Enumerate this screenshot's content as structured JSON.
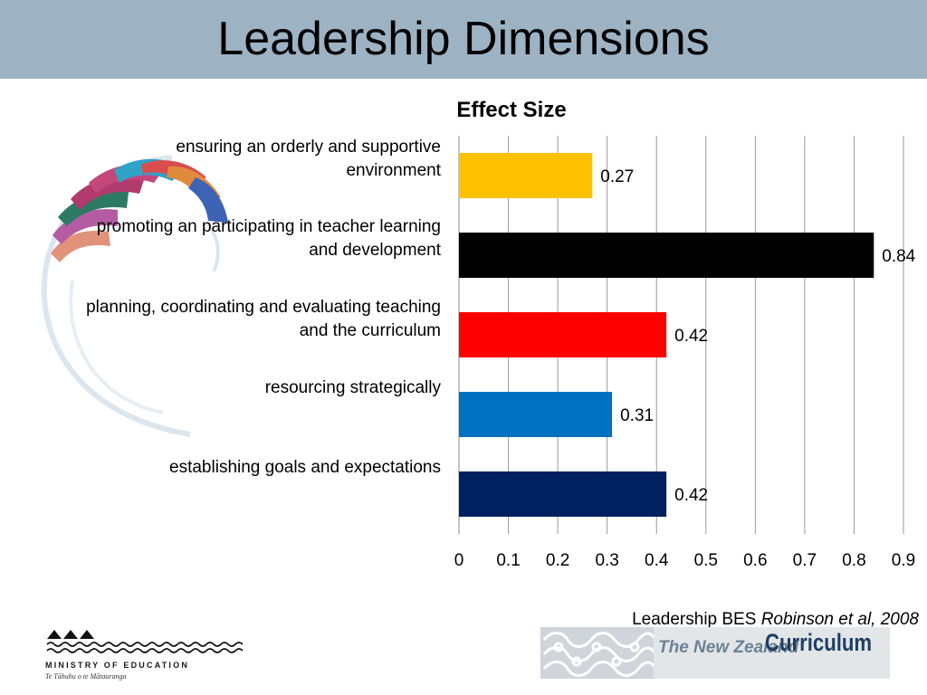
{
  "slide": {
    "title": "Leadership Dimensions"
  },
  "chart_data": {
    "type": "bar",
    "orientation": "horizontal",
    "title": "Effect Size",
    "categories": [
      "ensuring an orderly and supportive environment",
      "promoting an participating in teacher learning and development",
      "planning, coordinating and evaluating teaching and the curriculum",
      "resourcing strategically",
      "establishing goals and expectations"
    ],
    "values": [
      0.27,
      0.84,
      0.42,
      0.31,
      0.42
    ],
    "data_labels": [
      "0.27",
      "0.84",
      "0.42",
      "0.31",
      "0.42"
    ],
    "bar_colors": [
      "#ffc000",
      "#000000",
      "#ff0000",
      "#0070c0",
      "#002060"
    ],
    "xlim": [
      0,
      0.9
    ],
    "xticks": [
      "0",
      "0.1",
      "0.2",
      "0.3",
      "0.4",
      "0.5",
      "0.6",
      "0.7",
      "0.8",
      "0.9"
    ],
    "grid": true,
    "legend": "none"
  },
  "caption": {
    "text": "Leadership BES",
    "citation": "Robinson et al, 2008"
  },
  "footer": {
    "ministry_name": "MINISTRY OF EDUCATION",
    "ministry_subtitle": "Te Tāhuhu o te Mātauranga",
    "curriculum_prefix": "The New Zealand",
    "curriculum_word": "Curriculum"
  },
  "colors": {
    "title_band": "#9db3c4"
  }
}
